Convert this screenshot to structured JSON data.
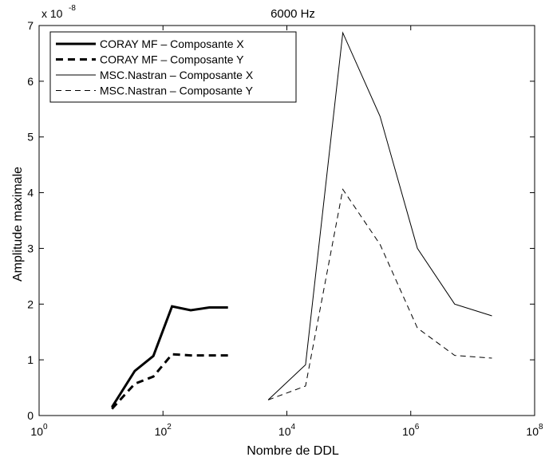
{
  "chart_data": {
    "type": "line",
    "title": "6000 Hz",
    "xlabel": "Nombre de DDL",
    "ylabel": "Amplitude maximale",
    "x_scale": "log",
    "xlim": [
      1,
      100000000
    ],
    "ylim": [
      0,
      7
    ],
    "y_multiplier_label": "x 10",
    "y_multiplier_exponent": "-8",
    "x_ticks": [
      {
        "value": 1,
        "base": "10",
        "exp": "0"
      },
      {
        "value": 100,
        "base": "10",
        "exp": "2"
      },
      {
        "value": 10000,
        "base": "10",
        "exp": "4"
      },
      {
        "value": 1000000,
        "base": "10",
        "exp": "6"
      },
      {
        "value": 100000000,
        "base": "10",
        "exp": "8"
      }
    ],
    "y_ticks": [
      {
        "value": 0,
        "label": "0"
      },
      {
        "value": 1,
        "label": "1"
      },
      {
        "value": 2,
        "label": "2"
      },
      {
        "value": 3,
        "label": "3"
      },
      {
        "value": 4,
        "label": "4"
      },
      {
        "value": 5,
        "label": "5"
      },
      {
        "value": 6,
        "label": "6"
      },
      {
        "value": 7,
        "label": "7"
      }
    ],
    "grid": false,
    "legend_position": "top-left",
    "series": [
      {
        "name": "CORAY MF – Composante X",
        "style": "thick-solid",
        "x": [
          15,
          35,
          70,
          140,
          280,
          560,
          1120
        ],
        "y": [
          0.15,
          0.8,
          1.07,
          1.96,
          1.89,
          1.94,
          1.94
        ]
      },
      {
        "name": "CORAY MF – Composante Y",
        "style": "thick-dashed",
        "x": [
          15,
          35,
          70,
          140,
          280,
          560,
          1120
        ],
        "y": [
          0.12,
          0.57,
          0.7,
          1.1,
          1.08,
          1.08,
          1.08
        ]
      },
      {
        "name": "MSC.Nastran – Composante X",
        "style": "thin-solid",
        "x": [
          5000,
          20000,
          80000,
          320000,
          1280000,
          5120000,
          20480000
        ],
        "y": [
          0.28,
          0.91,
          6.87,
          5.37,
          3.0,
          2.0,
          1.79
        ]
      },
      {
        "name": "MSC.Nastran – Composante Y",
        "style": "thin-dashed",
        "x": [
          5000,
          20000,
          80000,
          320000,
          1280000,
          5120000,
          20480000
        ],
        "y": [
          0.28,
          0.53,
          4.06,
          3.07,
          1.57,
          1.08,
          1.03
        ]
      }
    ]
  }
}
